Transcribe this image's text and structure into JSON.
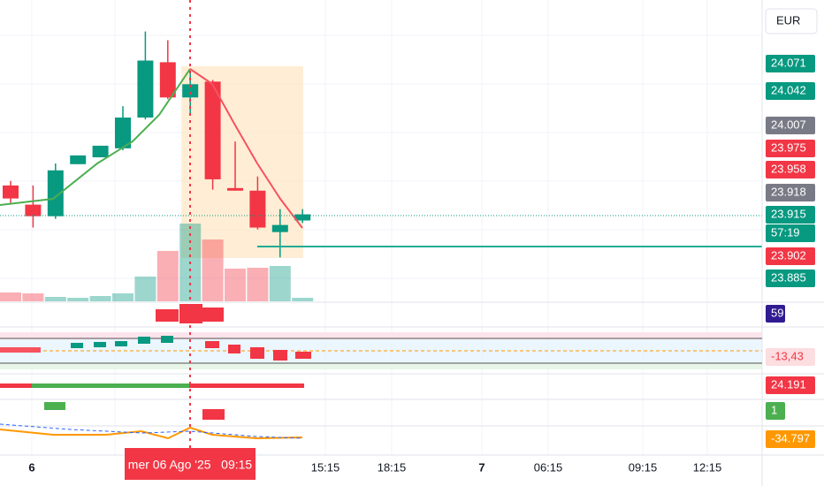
{
  "chart_data": {
    "type": "candlestick",
    "ylim": [
      23.879,
      24.006
    ],
    "candles": [
      {
        "open": 23.9276,
        "high": 23.9295,
        "low": 23.9202,
        "close": 23.9221
      },
      {
        "open": 23.9195,
        "high": 23.9276,
        "low": 23.9098,
        "close": 23.9146
      },
      {
        "open": 23.9146,
        "high": 23.9369,
        "low": 23.9135,
        "close": 23.934
      },
      {
        "open": 23.9366,
        "high": 23.9403,
        "low": 23.9366,
        "close": 23.9403
      },
      {
        "open": 23.9395,
        "high": 23.9444,
        "low": 23.9395,
        "close": 23.9444
      },
      {
        "open": 23.9433,
        "high": 23.9611,
        "low": 23.9425,
        "close": 23.9563
      },
      {
        "open": 23.9563,
        "high": 23.9927,
        "low": 23.9555,
        "close": 23.9804
      },
      {
        "open": 23.9797,
        "high": 23.989,
        "low": 23.9641,
        "close": 23.9648
      },
      {
        "open": 23.9648,
        "high": 23.976,
        "low": 23.9574,
        "close": 23.9704
      },
      {
        "open": 23.9715,
        "high": 23.9722,
        "low": 23.9258,
        "close": 23.9302
      },
      {
        "open": 23.9265,
        "high": 23.9462,
        "low": 23.9258,
        "close": 23.9254
      },
      {
        "open": 23.9254,
        "high": 23.9314,
        "low": 23.909,
        "close": 23.9098
      },
      {
        "open": 23.9079,
        "high": 23.9176,
        "low": 23.8972,
        "close": 23.9109
      },
      {
        "open": 23.9128,
        "high": 23.9176,
        "low": 23.9117,
        "close": 23.9154
      }
    ],
    "volume": [
      10,
      9,
      5,
      4,
      6,
      9,
      28,
      57,
      88,
      70,
      37,
      38,
      40,
      4
    ],
    "up_color": "#089981",
    "down_color": "#f23645"
  },
  "currency": "EUR",
  "price_tags": [
    {
      "text": "24.071",
      "color": "#089981"
    },
    {
      "text": "24.042",
      "color": "#089981"
    },
    {
      "text": "24.007",
      "color": "#787b86"
    },
    {
      "text": "23.975",
      "color": "#f23645"
    },
    {
      "text": "23.958",
      "color": "#f23645"
    },
    {
      "text": "23.918",
      "color": "#787b86"
    },
    {
      "text": "23.915",
      "color": "#089981"
    },
    {
      "text": "57:19",
      "color": "#089981"
    },
    {
      "text": "23.902",
      "color": "#f23645"
    },
    {
      "text": "23.885",
      "color": "#089981"
    },
    {
      "text": "59",
      "color": "#311b92"
    },
    {
      "text": "-13,43",
      "color": "#f23645"
    },
    {
      "text": "24.191",
      "color": "#f23645"
    },
    {
      "text": "1",
      "color": "#4caf50"
    },
    {
      "text": "-34.797",
      "color": "#ff9800"
    }
  ],
  "time_labels": [
    "6",
    "15:15",
    "18:15",
    "7",
    "06:15",
    "09:15",
    "12:15"
  ],
  "crosshair_label": "mer 06 Ago '25   09:15"
}
